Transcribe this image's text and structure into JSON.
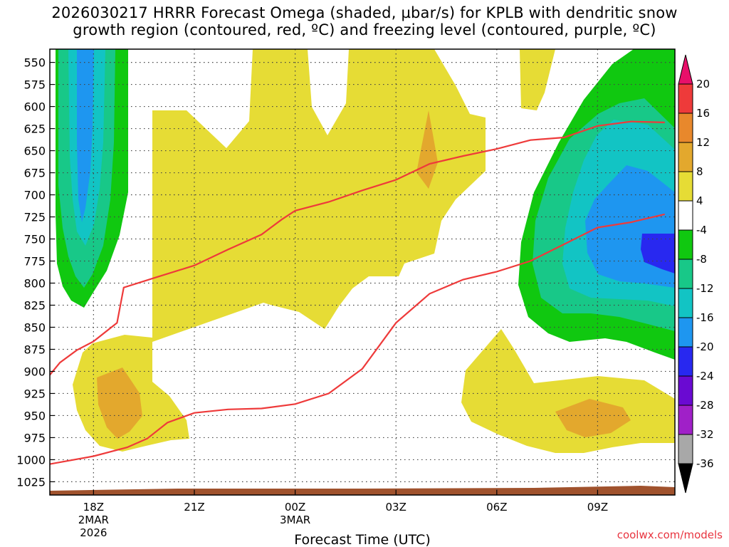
{
  "chart_data": {
    "type": "heatmap",
    "title_line1": "2026030217 HRRR Forecast Omega (shaded, µbar/s) for KPLB with dendritic snow",
    "title_line2": "growth region (contoured, red, ºC) and freezing level (contoured, purple, ºC)",
    "xlabel": "Forecast Time (UTC)",
    "ylabel": "",
    "credit": "coolwx.com/models",
    "x_range_hours": [
      16.7,
      11.3
    ],
    "y_range_mb": [
      535,
      1040
    ],
    "y_ticks": [
      550,
      575,
      600,
      625,
      650,
      675,
      700,
      725,
      750,
      775,
      800,
      825,
      850,
      875,
      900,
      925,
      950,
      975,
      1000,
      1025
    ],
    "x_ticks": [
      {
        "hour": 18,
        "label": "18Z",
        "date": "2MAR",
        "year": "2026"
      },
      {
        "hour": 21,
        "label": "21Z",
        "date": "",
        "year": ""
      },
      {
        "hour": 24,
        "label": "00Z",
        "date": "3MAR",
        "year": ""
      },
      {
        "hour": 27,
        "label": "03Z",
        "date": "",
        "year": ""
      },
      {
        "hour": 30,
        "label": "06Z",
        "date": "",
        "year": ""
      },
      {
        "hour": 33,
        "label": "09Z",
        "date": "",
        "year": ""
      }
    ],
    "colorbar": {
      "labels": [
        "20",
        "16",
        "12",
        "8",
        "4",
        "-4",
        "-8",
        "-12",
        "-16",
        "-20",
        "-24",
        "-28",
        "-32",
        "-36"
      ],
      "colors": [
        "#e8106a",
        "#ee3a3a",
        "#e8882c",
        "#e3a82d",
        "#e6dc35",
        "#ffffff",
        "#10c810",
        "#18c888",
        "#12c4c4",
        "#1e96f0",
        "#2828f0",
        "#6a0ad2",
        "#a020c8",
        "#a8a8a8",
        "#000000"
      ]
    },
    "contours": {
      "dendritic_snow_growth_top": {
        "color": "#ee3a3a",
        "points": [
          [
            16.7,
            904
          ],
          [
            17.0,
            890
          ],
          [
            17.5,
            876
          ],
          [
            18.0,
            866
          ],
          [
            18.7,
            845
          ],
          [
            18.9,
            805
          ],
          [
            19.9,
            793
          ],
          [
            21.0,
            780
          ],
          [
            22.0,
            762
          ],
          [
            23.0,
            745
          ],
          [
            23.6,
            728
          ],
          [
            24.0,
            718
          ],
          [
            25.0,
            708
          ],
          [
            26.0,
            695
          ],
          [
            27.0,
            683
          ],
          [
            28.0,
            665
          ],
          [
            29.0,
            656
          ],
          [
            30.0,
            648
          ],
          [
            31.0,
            638
          ],
          [
            32.0,
            635
          ],
          [
            33.0,
            622
          ],
          [
            34.0,
            617
          ],
          [
            35.0,
            618
          ]
        ]
      },
      "dendritic_snow_growth_bottom": {
        "color": "#ee3a3a",
        "points": [
          [
            16.7,
            1005
          ],
          [
            18.0,
            996
          ],
          [
            19.0,
            986
          ],
          [
            19.6,
            976
          ],
          [
            20.2,
            958
          ],
          [
            21.0,
            947
          ],
          [
            22.0,
            943
          ],
          [
            23.0,
            942
          ],
          [
            24.0,
            937
          ],
          [
            25.0,
            925
          ],
          [
            26.0,
            897
          ],
          [
            27.0,
            845
          ],
          [
            28.0,
            812
          ],
          [
            29.0,
            796
          ],
          [
            30.0,
            787
          ],
          [
            31.0,
            775
          ],
          [
            32.0,
            756
          ],
          [
            33.0,
            737
          ],
          [
            34.0,
            731
          ],
          [
            35.0,
            722
          ]
        ]
      }
    },
    "regions": [
      {
        "name": "upward-motion-4-8",
        "value_range": [
          4,
          8
        ],
        "color": "#e6dc35"
      },
      {
        "name": "upward-motion-8-12",
        "value_range": [
          8,
          12
        ],
        "color": "#e3a82d"
      },
      {
        "name": "downward-motion-minus4-minus8",
        "value_range": [
          -8,
          -4
        ],
        "color": "#10c810"
      },
      {
        "name": "downward-motion-minus8-minus12",
        "value_range": [
          -12,
          -8
        ],
        "color": "#18c888"
      },
      {
        "name": "downward-motion-minus12-minus16",
        "value_range": [
          -16,
          -12
        ],
        "color": "#12c4c4"
      },
      {
        "name": "downward-motion-minus16-minus20",
        "value_range": [
          -20,
          -16
        ],
        "color": "#1e96f0"
      },
      {
        "name": "downward-motion-minus20-minus24",
        "value_range": [
          -24,
          -20
        ],
        "color": "#2828f0"
      },
      {
        "name": "terrain",
        "value_range": [],
        "color": "#a0522d"
      }
    ]
  }
}
